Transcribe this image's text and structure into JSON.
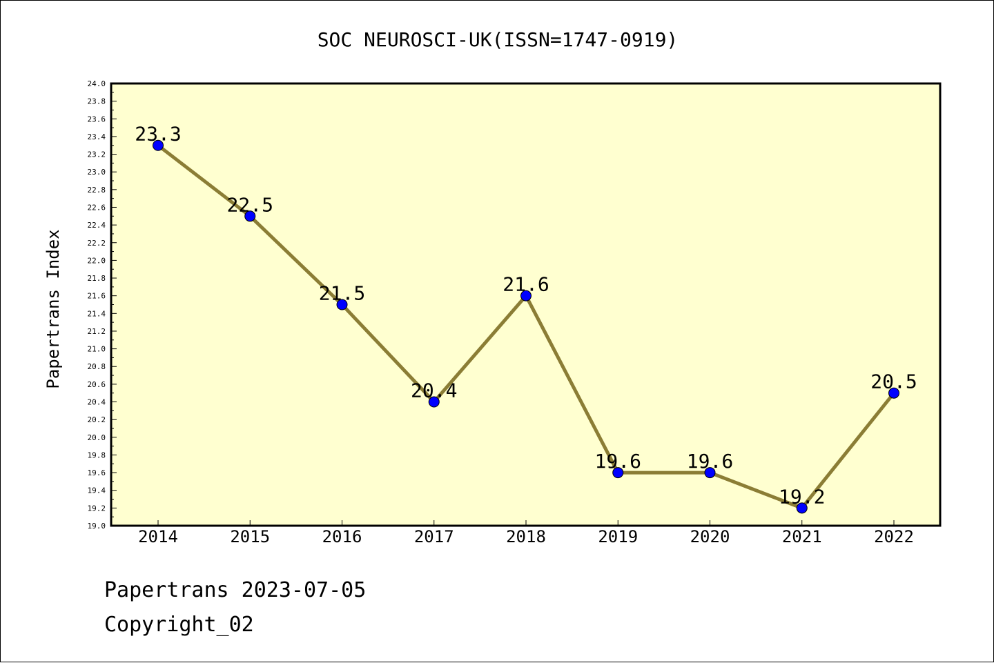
{
  "chart_data": {
    "type": "line",
    "title": "SOC NEUROSCI-UK(ISSN=1747-0919)",
    "ylabel": "Papertrans Index",
    "xlabel": "",
    "categories": [
      "2014",
      "2015",
      "2016",
      "2017",
      "2018",
      "2019",
      "2020",
      "2021",
      "2022"
    ],
    "series": [
      {
        "values": [
          23.3,
          22.5,
          21.5,
          20.4,
          21.6,
          19.6,
          19.6,
          19.2,
          20.5
        ],
        "labels": [
          "23.3",
          "22.5",
          "21.5",
          "20.4",
          "21.6",
          "19.6",
          "19.6",
          "19.2",
          "20.5"
        ],
        "line_color": "#8b7d35",
        "marker_color": "#0000ff"
      }
    ],
    "ylim": [
      19.0,
      24.0
    ],
    "yticks": [
      "19.0",
      "19.2",
      "19.4",
      "19.6",
      "19.8",
      "20.0",
      "20.2",
      "20.4",
      "20.6",
      "20.8",
      "21.0",
      "21.2",
      "21.4",
      "21.6",
      "21.8",
      "22.0",
      "22.2",
      "22.4",
      "22.6",
      "22.8",
      "23.0",
      "23.2",
      "23.4",
      "23.6",
      "23.8",
      "24.0"
    ],
    "plot_background": "#ffffd0",
    "grid": false,
    "legend": "none"
  },
  "footer": {
    "line1": "Papertrans 2023-07-05",
    "line2": "Copyright_02"
  }
}
